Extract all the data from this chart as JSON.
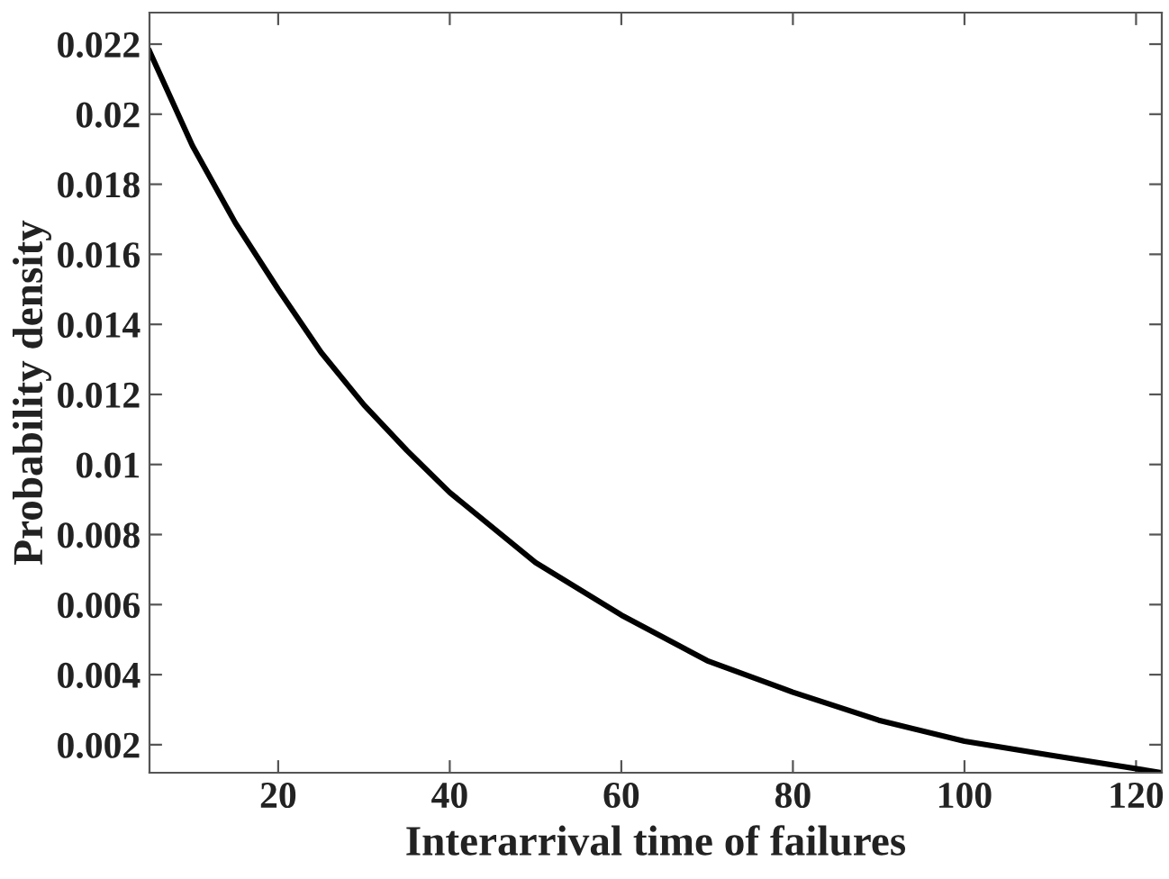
{
  "chart_data": {
    "type": "line",
    "xlabel": "Interarrival time of failures",
    "ylabel": "Probability density",
    "x": [
      5,
      10,
      15,
      20,
      25,
      30,
      35,
      40,
      50,
      60,
      70,
      80,
      90,
      100,
      110,
      123
    ],
    "series": [
      {
        "color": "#000000",
        "values": [
          0.0218,
          0.0191,
          0.0169,
          0.015,
          0.0132,
          0.0117,
          0.0104,
          0.0092,
          0.0072,
          0.0057,
          0.0044,
          0.0035,
          0.0027,
          0.0021,
          0.0017,
          0.0012
        ]
      }
    ],
    "xlim": [
      5,
      123
    ],
    "ylim": [
      0.0012,
      0.0229
    ],
    "xticks": [
      20,
      40,
      60,
      80,
      100,
      120
    ],
    "yticks": [
      0.002,
      0.004,
      0.006,
      0.008,
      0.01,
      0.012,
      0.014,
      0.016,
      0.018,
      0.02,
      0.022
    ],
    "grid": false,
    "legend": false,
    "marker": "none",
    "line_style": "solid"
  }
}
